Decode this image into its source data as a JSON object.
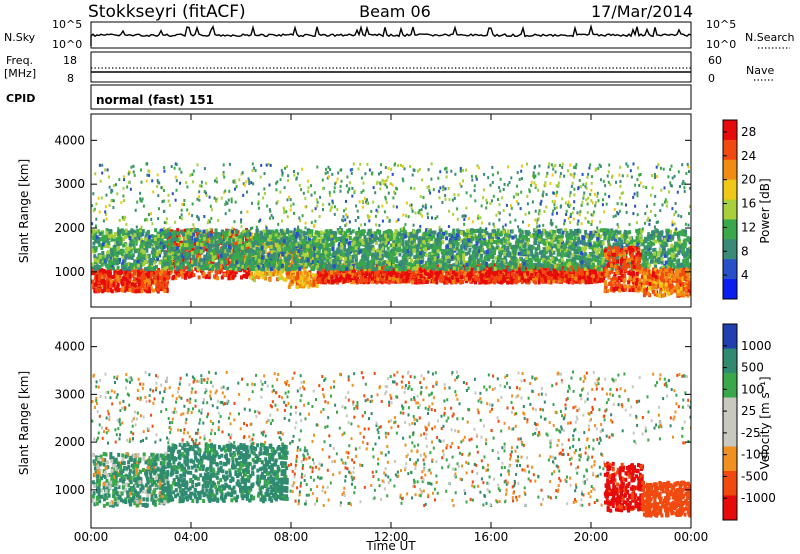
{
  "header": {
    "station": "Stokkseyri (fitACF)",
    "beam": "Beam 06",
    "date": "17/Mar/2014"
  },
  "panels": {
    "nsky": {
      "label": "N.Sky",
      "tick_top": "10^5",
      "tick_bottom": "10^0",
      "right_label": "N.Search",
      "right_tick_top": "10^5",
      "right_tick_bottom": "10^0"
    },
    "freq": {
      "label_line1": "Freq.",
      "label_line2": "[MHz]",
      "tick_top": "18",
      "tick_bottom": "8",
      "right_label": "Nave",
      "right_tick_top": "60",
      "right_tick_bottom": "0"
    },
    "cpid": {
      "label": "CPID",
      "value": "normal (fast) 151"
    }
  },
  "colors": {
    "power": [
      "#0a1ef0",
      "#2850c8",
      "#3a8a78",
      "#38a84a",
      "#a8d03a",
      "#f0c818",
      "#f08c14",
      "#f04a10",
      "#e60a0a"
    ],
    "velocity": [
      "#e60a0a",
      "#f04a10",
      "#f09020",
      "#c8c8c0",
      "#c8c8c0",
      "#38a84a",
      "#2f8a70",
      "#2040b0"
    ]
  },
  "chart_data": [
    {
      "type": "heatmap",
      "title": "Power",
      "ylabel": "Slant Range [km]",
      "xlabel": "",
      "ylim": [
        200,
        4600
      ],
      "xlim": [
        0,
        24
      ],
      "yticks": [
        "1000",
        "2000",
        "3000",
        "4000"
      ],
      "colorbar": {
        "label": "Power [dB]",
        "ticks": [
          "4",
          "8",
          "12",
          "16",
          "20",
          "24",
          "28"
        ],
        "range": [
          0,
          30
        ]
      },
      "grid": false,
      "regions": [
        {
          "t": [
            0.0,
            3.0
          ],
          "r": [
            600,
            1100
          ],
          "level": 28
        },
        {
          "t": [
            3.0,
            6.3
          ],
          "r": [
            900,
            2000
          ],
          "level": 28
        },
        {
          "t": [
            6.3,
            7.8
          ],
          "r": [
            850,
            1900
          ],
          "level": 20
        },
        {
          "t": [
            7.8,
            9.0
          ],
          "r": [
            700,
            1700
          ],
          "level": 22
        },
        {
          "t": [
            9.0,
            20.5
          ],
          "r": [
            800,
            1200
          ],
          "level": 28
        },
        {
          "t": [
            0.0,
            24.0
          ],
          "r": [
            1100,
            2000
          ],
          "level": 10
        },
        {
          "t": [
            0.0,
            24.0
          ],
          "r": [
            2000,
            3500
          ],
          "level": 8
        },
        {
          "t": [
            20.5,
            22.0
          ],
          "r": [
            600,
            1600
          ],
          "level": 26
        },
        {
          "t": [
            22.0,
            24.0
          ],
          "r": [
            500,
            1100
          ],
          "level": 24
        }
      ]
    },
    {
      "type": "heatmap",
      "title": "Velocity",
      "ylabel": "Slant Range [km]",
      "xlabel": "Time UT",
      "ylim": [
        200,
        4600
      ],
      "xlim": [
        0,
        24
      ],
      "yticks": [
        "1000",
        "2000",
        "3000",
        "4000"
      ],
      "xticks": [
        "00:00",
        "04:00",
        "08:00",
        "12:00",
        "16:00",
        "20:00",
        "00:00"
      ],
      "colorbar": {
        "label": "Velocity [m s⁻¹]",
        "ticks": [
          "1000",
          "500",
          "100",
          "25",
          "-25",
          "-100",
          "-500",
          "-1000"
        ]
      },
      "grid": false,
      "regions": [
        {
          "t": [
            0.0,
            3.0
          ],
          "r": [
            700,
            1800
          ],
          "level": 100
        },
        {
          "t": [
            3.0,
            7.8
          ],
          "r": [
            800,
            2000
          ],
          "level": 200
        },
        {
          "t": [
            7.8,
            20.5
          ],
          "r": [
            700,
            2000
          ],
          "level": 0
        },
        {
          "t": [
            20.5,
            22.0
          ],
          "r": [
            600,
            1600
          ],
          "level": -600
        },
        {
          "t": [
            22.0,
            24.0
          ],
          "r": [
            500,
            1200
          ],
          "level": -300
        },
        {
          "t": [
            0.0,
            24.0
          ],
          "r": [
            2000,
            3500
          ],
          "level": 0
        }
      ]
    }
  ]
}
